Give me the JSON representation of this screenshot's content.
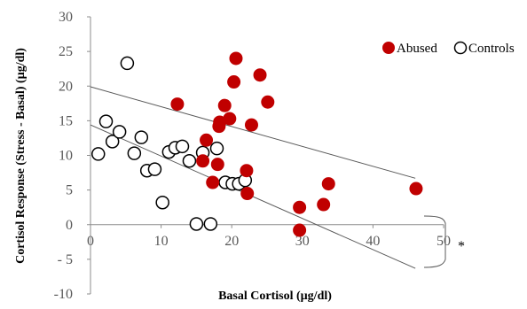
{
  "chart_data": {
    "type": "scatter",
    "xlabel": "Basal Cortisol (µg/dl)",
    "ylabel": "Cortisol Response (Stress - Basal) (µg/dl)",
    "xlim": [
      0,
      50
    ],
    "ylim": [
      -10,
      30
    ],
    "x_ticks": [
      0,
      10,
      20,
      30,
      40,
      50
    ],
    "y_ticks": [
      30,
      25,
      20,
      15,
      10,
      5,
      0,
      -5,
      -10
    ],
    "x_tick_labels": [
      "0",
      "10",
      "20",
      "30",
      "40",
      "50"
    ],
    "y_tick_labels": [
      "30",
      "25",
      "20",
      "15",
      "10",
      "5",
      "0",
      "- 5",
      "-10"
    ],
    "legend": {
      "position": "top-right",
      "entries": [
        "Abused",
        "Controls"
      ]
    },
    "colors": {
      "abused": "#c00000",
      "controls": "#ffffff",
      "marker_edge": "#000000",
      "axis": "#8c8c8c",
      "line": "#595959"
    },
    "series": [
      {
        "name": "Abused",
        "points": [
          [
            12.3,
            17.4
          ],
          [
            15.9,
            9.2
          ],
          [
            16.4,
            12.2
          ],
          [
            17.3,
            6.1
          ],
          [
            18.0,
            8.7
          ],
          [
            18.2,
            14.2
          ],
          [
            18.3,
            14.8
          ],
          [
            19.0,
            17.2
          ],
          [
            19.7,
            15.3
          ],
          [
            20.3,
            20.6
          ],
          [
            20.6,
            24.0
          ],
          [
            22.1,
            7.8
          ],
          [
            22.2,
            4.5
          ],
          [
            22.8,
            14.4
          ],
          [
            24.0,
            21.6
          ],
          [
            25.1,
            17.7
          ],
          [
            29.6,
            2.5
          ],
          [
            29.6,
            -0.8
          ],
          [
            33.0,
            2.9
          ],
          [
            33.7,
            5.9
          ],
          [
            46.1,
            5.2
          ]
        ]
      },
      {
        "name": "Controls",
        "points": [
          [
            1.1,
            10.2
          ],
          [
            2.2,
            14.9
          ],
          [
            3.1,
            12.0
          ],
          [
            4.1,
            13.4
          ],
          [
            5.2,
            23.3
          ],
          [
            6.2,
            10.3
          ],
          [
            7.2,
            12.6
          ],
          [
            8.0,
            7.8
          ],
          [
            9.1,
            8.0
          ],
          [
            10.2,
            3.2
          ],
          [
            11.1,
            10.5
          ],
          [
            12.0,
            11.1
          ],
          [
            13.0,
            11.3
          ],
          [
            14.0,
            9.2
          ],
          [
            15.0,
            0.1
          ],
          [
            15.9,
            10.4
          ],
          [
            17.0,
            0.1
          ],
          [
            17.9,
            11.0
          ],
          [
            19.1,
            6.1
          ],
          [
            20.1,
            5.9
          ],
          [
            21.0,
            5.9
          ],
          [
            21.9,
            6.4
          ]
        ]
      }
    ],
    "lines": [
      {
        "name": "upper",
        "x": [
          0,
          46
        ],
        "y": [
          19.9,
          6.7
        ]
      },
      {
        "name": "lower",
        "x": [
          0,
          46
        ],
        "y": [
          14.4,
          -6.3
        ]
      }
    ],
    "annotation": "*"
  }
}
